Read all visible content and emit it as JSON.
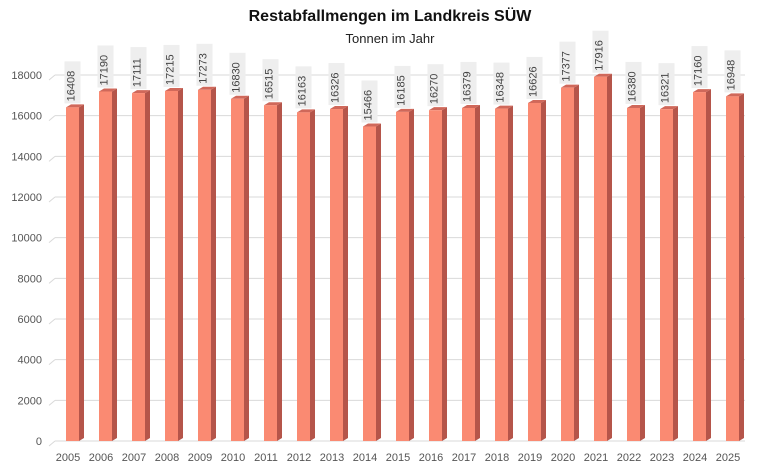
{
  "chart_data": {
    "type": "bar",
    "title": "Restabfallmengen im Landkreis SÜW",
    "subtitle": "Tonnen im Jahr",
    "categories": [
      "2005",
      "2006",
      "2007",
      "2008",
      "2009",
      "2010",
      "2011",
      "2012",
      "2013",
      "2014",
      "2015",
      "2016",
      "2017",
      "2018",
      "2019",
      "2020",
      "2021",
      "2022",
      "2023",
      "2024",
      "2025"
    ],
    "values": [
      16408,
      17190,
      17111,
      17215,
      17273,
      16830,
      16515,
      16163,
      16326,
      15466,
      16185,
      16270,
      16379,
      16348,
      16626,
      17377,
      17916,
      16380,
      16321,
      17160,
      16948
    ],
    "ylim": [
      0,
      18000
    ],
    "yticks": [
      0,
      2000,
      4000,
      6000,
      8000,
      10000,
      12000,
      14000,
      16000,
      18000
    ],
    "grid": true,
    "xlabel": "",
    "ylabel": "",
    "colors": {
      "bar_front": "#fa8a72",
      "bar_side": "#b5554a",
      "bar_top": "#d0685a",
      "label_bg": "#eeeeee",
      "grid": "#d9d9d9"
    }
  }
}
